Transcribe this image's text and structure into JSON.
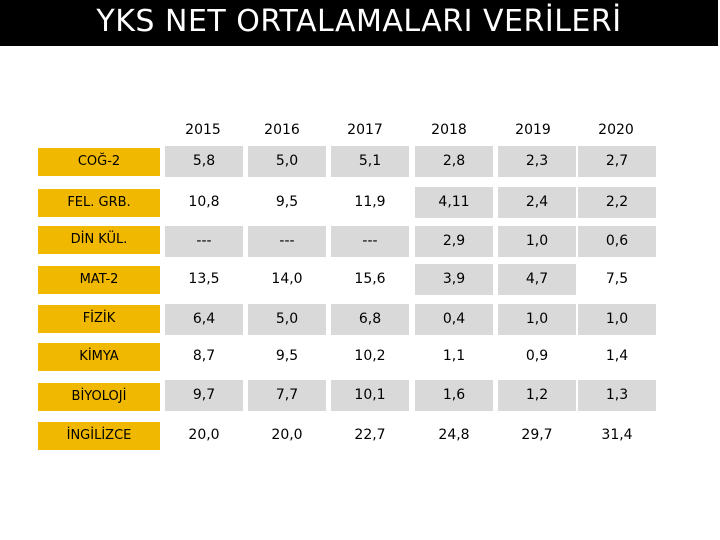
{
  "title": "YKS NET ORTALAMALARI VERİLERİ",
  "years": [
    "2015",
    "2016",
    "2017",
    "2018",
    "2019",
    "2020"
  ],
  "rows": [
    {
      "label": "COĞ-2",
      "values": [
        "5,8",
        "5,0",
        "5,1",
        "2,8",
        "2,3",
        "2,7"
      ]
    },
    {
      "label": "FEL. GRB.",
      "values": [
        "10,8",
        "9,5",
        "11,9",
        "4,11",
        "2,4",
        "2,2"
      ]
    },
    {
      "label": "DİN KÜL.",
      "values": [
        "---",
        "---",
        "---",
        "2,9",
        "1,0",
        "0,6"
      ]
    },
    {
      "label": "MAT-2",
      "values": [
        "13,5",
        "14,0",
        "15,6",
        "3,9",
        "4,7",
        "7,5"
      ]
    },
    {
      "label": "FİZİK",
      "values": [
        "6,4",
        "5,0",
        "6,8",
        "0,4",
        "1,0",
        "1,0"
      ]
    },
    {
      "label": "KİMYA",
      "values": [
        "8,7",
        "9,5",
        "10,2",
        "1,1",
        "0,9",
        "1,4"
      ]
    },
    {
      "label": "BİYOLOJİ",
      "values": [
        "9,7",
        "7,7",
        "10,1",
        "1,6",
        "1,2",
        "1,3"
      ]
    },
    {
      "label": "İNGİLİZCE",
      "values": [
        "20,0",
        "20,0",
        "22,7",
        "24,8",
        "29,7",
        "31,4"
      ]
    }
  ],
  "colors": {
    "title_bg": "#000000",
    "label_bg": "#f0b800",
    "cell_bg": "#d9d9d9"
  }
}
